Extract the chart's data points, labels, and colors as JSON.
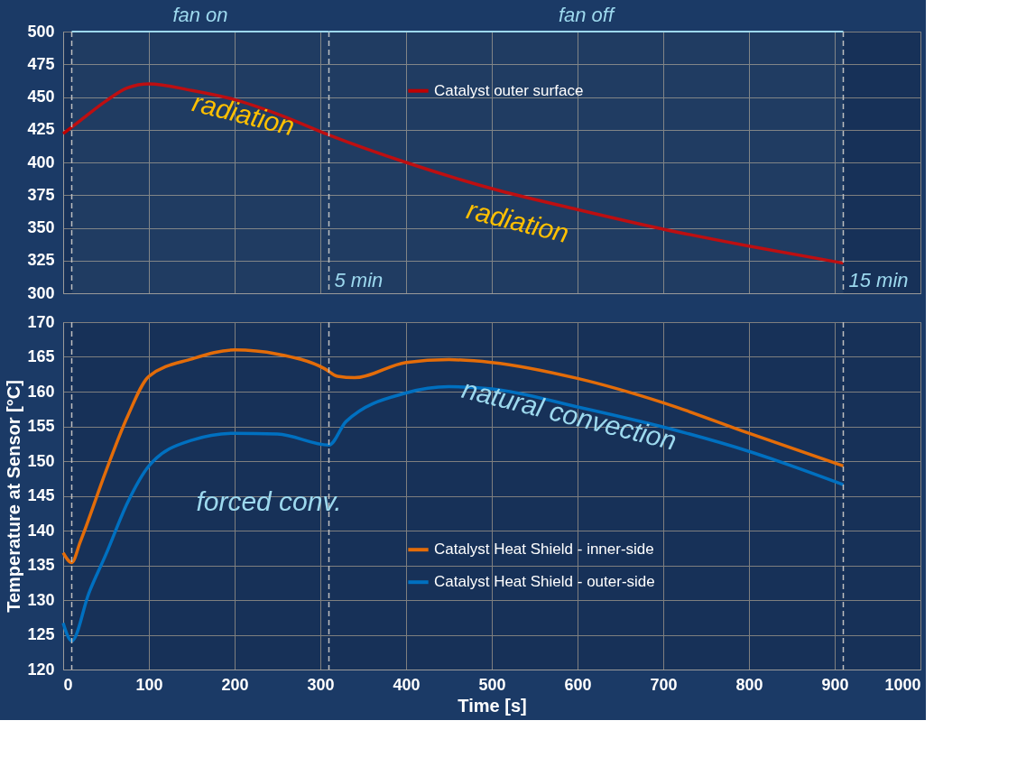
{
  "chart_data": [
    {
      "type": "line",
      "x": [
        0,
        20,
        50,
        75,
        100,
        150,
        200,
        250,
        310,
        400,
        500,
        600,
        700,
        800,
        910
      ],
      "series": [
        {
          "name": "Catalyst outer surface",
          "color": "#c00000",
          "values": [
            422,
            432,
            447,
            457,
            460,
            455,
            448,
            437,
            421,
            400,
            380,
            364,
            349,
            336,
            323
          ]
        }
      ],
      "xlim": [
        0,
        1000
      ],
      "xticks": [
        0,
        100,
        200,
        300,
        400,
        500,
        600,
        700,
        800,
        900,
        1000
      ],
      "ylim": [
        300,
        500
      ],
      "yticks": [
        300,
        325,
        350,
        375,
        400,
        425,
        450,
        475,
        500
      ],
      "tick_labels": "y",
      "grid": true,
      "legend": "top",
      "line_style": "solid",
      "marker": "none",
      "ref_lines": [
        {
          "axis": "x",
          "value": 10,
          "label": null,
          "color": "#bfbfbf",
          "line_style": "dashed"
        },
        {
          "axis": "x",
          "value": 310,
          "label": "5 min",
          "color": "#bfbfbf",
          "line_style": "dashed"
        },
        {
          "axis": "x",
          "value": 910,
          "label": "15 min",
          "color": "#bfbfbf",
          "line_style": "dashed"
        }
      ],
      "bands": [
        {
          "axis": "x",
          "from": 10,
          "to": 310,
          "label": "fan on",
          "color": "#9dd9ee"
        },
        {
          "axis": "x",
          "from": 310,
          "to": 910,
          "label": "fan off",
          "color": "#9dd9ee"
        }
      ],
      "annotations": [
        "radiation",
        "radiation"
      ]
    },
    {
      "type": "line",
      "series": [
        {
          "name": "Catalyst Heat Shield - inner-side",
          "color": "#e36c09",
          "x": [
            0,
            10,
            20,
            50,
            75,
            100,
            150,
            200,
            250,
            305,
            320,
            340,
            400,
            450,
            500,
            600,
            700,
            800,
            910
          ],
          "values": [
            136.8,
            135.4,
            138.4,
            148.6,
            156.4,
            162.2,
            164.7,
            166,
            165.4,
            163.3,
            162.2,
            162,
            164.2,
            164.6,
            164.2,
            161.9,
            158.4,
            154,
            149.3
          ]
        },
        {
          "name": "Catalyst Heat Shield - outer-side",
          "color": "#0070c0",
          "x": [
            0,
            10,
            30,
            50,
            75,
            100,
            150,
            200,
            250,
            310,
            330,
            400,
            450,
            500,
            600,
            700,
            800,
            910
          ],
          "values": [
            126.7,
            124.1,
            131,
            136.6,
            144,
            149.3,
            153,
            154,
            153.9,
            152.3,
            155.7,
            159.8,
            160.7,
            160.4,
            157.8,
            154.9,
            151.4,
            146.6
          ]
        }
      ],
      "xlim": [
        0,
        1000
      ],
      "xticks": [
        0,
        100,
        200,
        300,
        400,
        500,
        600,
        700,
        800,
        900,
        1000
      ],
      "ylim": [
        120,
        170
      ],
      "yticks": [
        120,
        125,
        130,
        135,
        140,
        145,
        150,
        155,
        160,
        165,
        170
      ],
      "xlabel": "Time [s]",
      "ylabel": "Temperature  at Sensor [°C]",
      "grid": true,
      "legend": "bottom",
      "line_style": "solid",
      "marker": "none",
      "ref_lines": [
        {
          "axis": "x",
          "value": 10,
          "label": null,
          "color": "#bfbfbf",
          "line_style": "dashed"
        },
        {
          "axis": "x",
          "value": 310,
          "label": null,
          "color": "#bfbfbf",
          "line_style": "dashed"
        },
        {
          "axis": "x",
          "value": 910,
          "label": null,
          "color": "#bfbfbf",
          "line_style": "dashed"
        }
      ],
      "annotations": [
        "forced conv.",
        "natural convection"
      ]
    }
  ]
}
